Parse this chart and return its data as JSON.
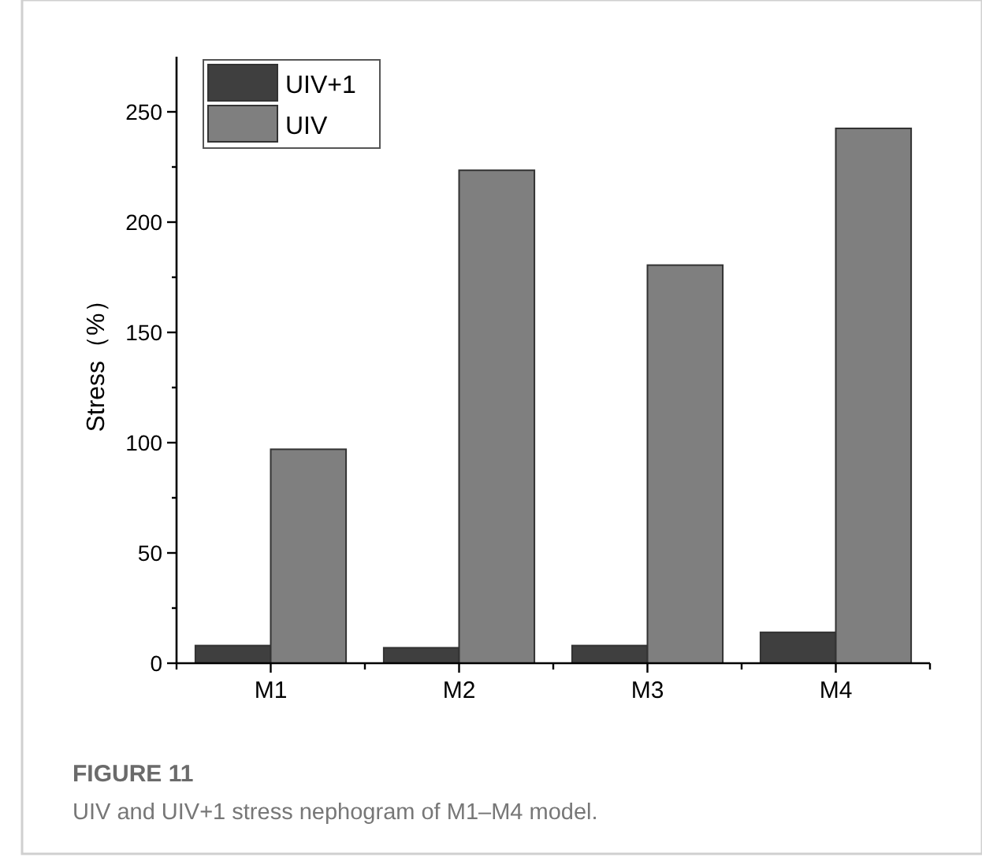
{
  "chart_data": {
    "type": "bar",
    "title": "FIGURE 11",
    "annotations": [
      "UIV and UIV+1 stress nephogram of M1–M4 model."
    ],
    "ylabel": "Stress（%）",
    "categories": [
      "M1",
      "M2",
      "M3",
      "M4"
    ],
    "series": [
      {
        "name": "UIV+1",
        "color": "#3f3f3f",
        "values": [
          8,
          7,
          8,
          14
        ]
      },
      {
        "name": "UIV",
        "color": "#7f7f7f",
        "values": [
          97,
          223.5,
          180.5,
          242.5
        ]
      }
    ],
    "ylim": [
      0,
      275
    ],
    "yticks": [
      0,
      {
        "value": 25,
        "label": null
      },
      50,
      {
        "value": 75,
        "label": null
      },
      100,
      {
        "value": 125,
        "label": null
      },
      150,
      {
        "value": 175,
        "label": null
      },
      200,
      {
        "value": 225,
        "label": null
      },
      250
    ],
    "grid": false,
    "legend": "top left"
  }
}
